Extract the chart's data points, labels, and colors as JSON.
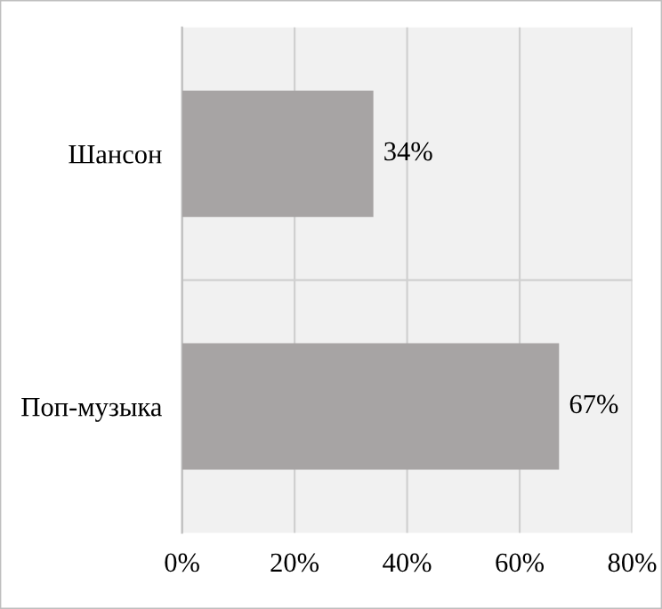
{
  "chart_data": {
    "type": "bar",
    "orientation": "horizontal",
    "categories": [
      "Шансон",
      "Поп-музыка"
    ],
    "values": [
      34,
      67
    ],
    "value_labels": [
      "34%",
      "67%"
    ],
    "color": "#a7a4a4",
    "xlim": [
      0,
      80
    ],
    "xticks": [
      {
        "value": 0,
        "label": "0%"
      },
      {
        "value": 20,
        "label": "20%"
      },
      {
        "value": 40,
        "label": "40%"
      },
      {
        "value": 60,
        "label": "60%"
      },
      {
        "value": 80,
        "label": "80%"
      }
    ],
    "grid": "x",
    "legend": false
  }
}
